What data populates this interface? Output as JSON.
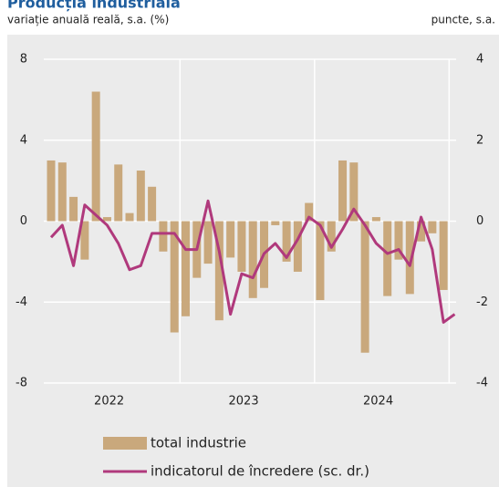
{
  "chart_data": {
    "type": "bar_line",
    "title": "Producția industrială",
    "subtitle": "variație anuală reală, s.a. (%)",
    "y2_label": "puncte, s.a.",
    "categories": [
      null,
      null,
      null,
      null,
      null,
      null,
      null,
      null,
      null,
      null,
      null,
      null,
      null,
      null,
      null,
      null,
      null,
      null,
      null,
      null,
      null,
      null,
      null,
      null,
      null,
      null,
      null,
      null,
      null,
      null,
      null,
      null,
      null,
      null,
      null,
      null,
      null
    ],
    "x_labels": [
      "2022",
      "2023",
      "2024"
    ],
    "series": [
      {
        "name": "total industrie",
        "type": "bar",
        "color": "#c9a87c",
        "values": [
          3.0,
          2.9,
          1.2,
          -1.9,
          6.4,
          0.2,
          2.8,
          0.4,
          2.5,
          1.7,
          -1.5,
          -5.5,
          -4.7,
          -2.8,
          -2.1,
          -4.9,
          -1.8,
          -2.5,
          -3.8,
          -3.3,
          -0.2,
          -2.0,
          -2.5,
          0.9,
          -3.9,
          -1.5,
          3.0,
          2.9,
          -6.5,
          0.2,
          -3.7,
          -1.9,
          -3.6,
          -1.0,
          -0.6,
          -3.4,
          null
        ]
      },
      {
        "name": "indicatorul de încredere (sc. dr.)",
        "type": "line",
        "axis": "y2",
        "color": "#b0397c",
        "values": [
          -0.4,
          -0.1,
          -1.1,
          0.4,
          0.15,
          -0.1,
          -0.55,
          -1.2,
          -1.1,
          -0.3,
          -0.3,
          -0.3,
          -0.7,
          -0.7,
          0.5,
          -0.75,
          -2.3,
          -1.3,
          -1.4,
          -0.8,
          -0.55,
          -0.9,
          -0.45,
          0.1,
          -0.1,
          -0.65,
          -0.2,
          0.3,
          -0.1,
          -0.55,
          -0.8,
          -0.7,
          -1.1,
          0.1,
          -0.7,
          -2.5,
          -2.3
        ]
      }
    ],
    "ylim": [
      -8,
      8
    ],
    "yticks": [
      -8,
      -4,
      0,
      4,
      8
    ],
    "y2lim": [
      -4,
      4
    ],
    "y2ticks": [
      -4,
      -2,
      0,
      2,
      4
    ],
    "grid": true
  }
}
